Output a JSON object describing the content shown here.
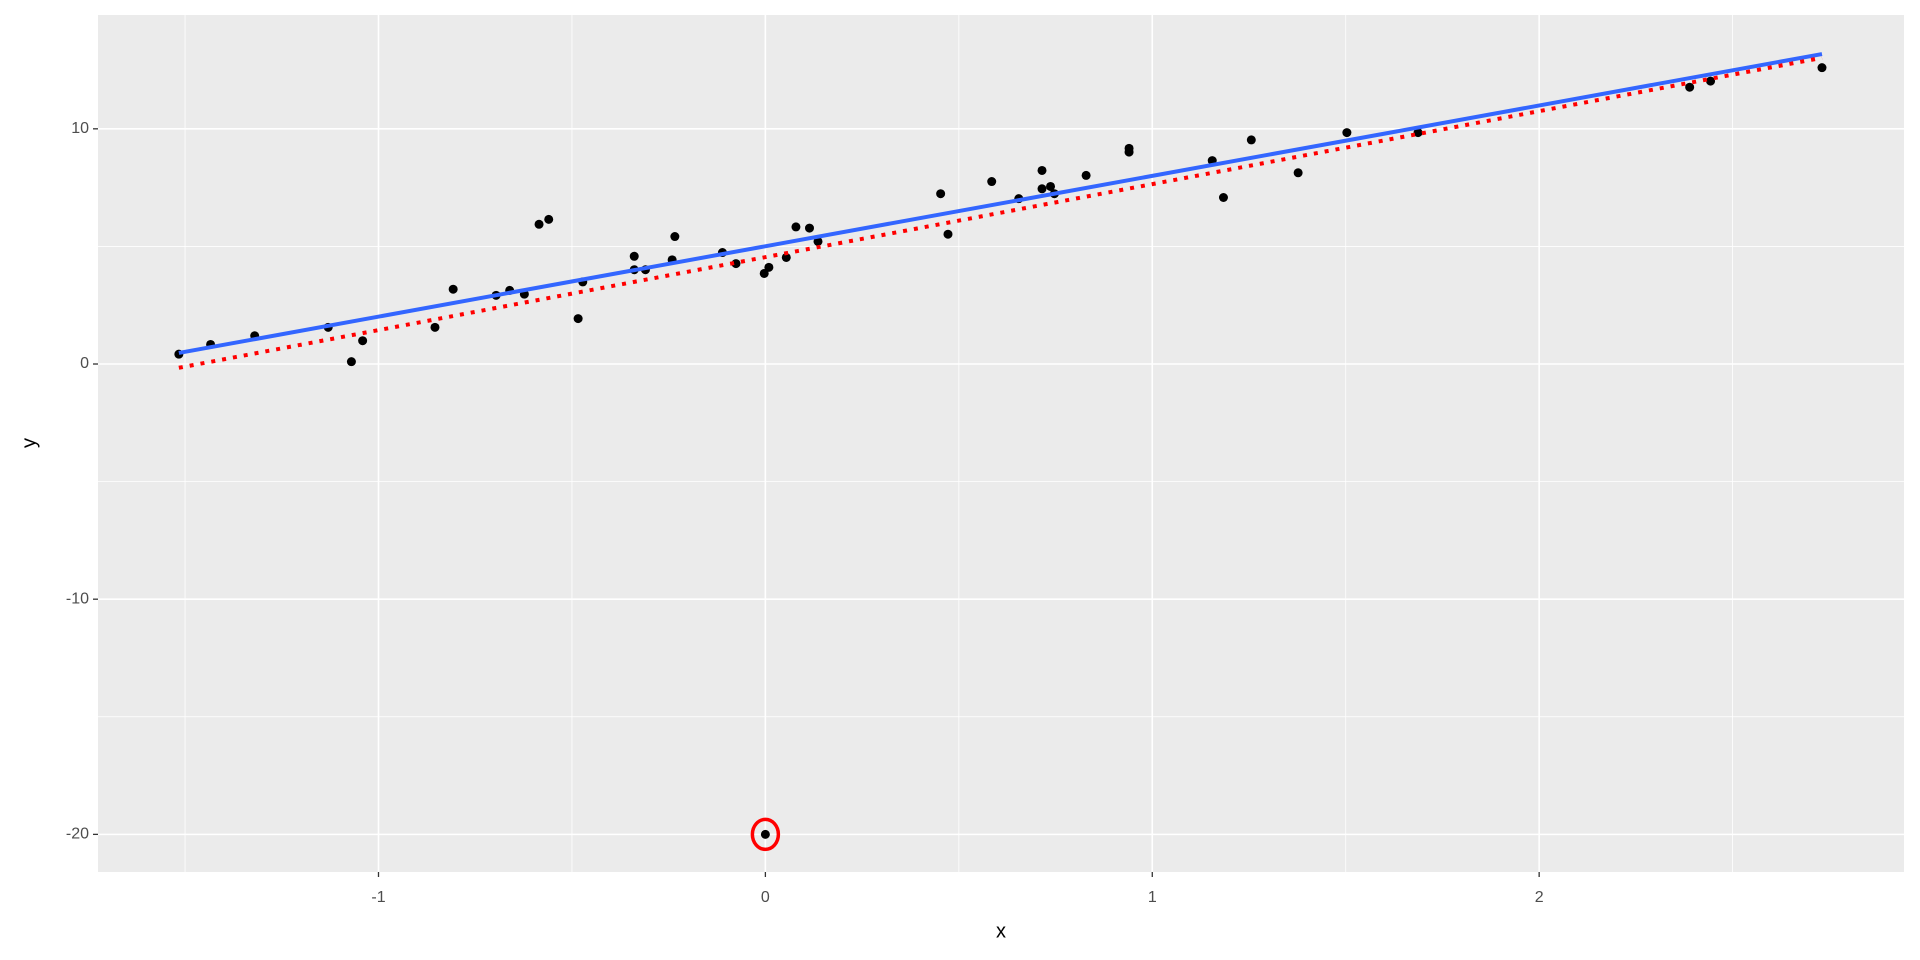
{
  "chart_data": {
    "type": "scatter",
    "x_label": "x",
    "y_label": "y",
    "xlim": [
      -1.725,
      2.943
    ],
    "ylim": [
      -21.6,
      14.84
    ],
    "xticks": [
      -1,
      0,
      1,
      2
    ],
    "yticks": [
      -20,
      -10,
      0,
      10
    ],
    "minor_xticks": [
      -1.5,
      -0.5,
      0.5,
      1.5,
      2.5
    ],
    "minor_yticks": [
      -15,
      -5,
      5
    ],
    "grid": true,
    "point_color": "#000000",
    "x": [
      -1.516,
      -1.434,
      -1.32,
      -1.13,
      -1.07,
      -1.041,
      -0.854,
      -0.807,
      -0.696,
      -0.661,
      -0.623,
      -0.585,
      -0.56,
      -0.484,
      -0.472,
      -0.339,
      -0.339,
      -0.31,
      -0.241,
      -0.234,
      -0.111,
      -0.076,
      -0.003,
      0.009,
      0.054,
      0.079,
      0.114,
      0.136,
      0,
      0.453,
      0.472,
      0.585,
      0.655,
      0.715,
      0.715,
      0.737,
      0.747,
      0.829,
      0.94,
      0.94,
      1.155,
      1.184,
      1.256,
      1.377,
      1.503,
      1.687,
      2.389,
      2.443,
      2.731
    ],
    "values": [
      0.42,
      0.83,
      1.2,
      1.56,
      0.1,
      0.99,
      1.56,
      3.18,
      2.92,
      3.13,
      2.97,
      5.94,
      6.15,
      1.93,
      3.49,
      4.58,
      4.01,
      4.01,
      4.43,
      5.42,
      4.74,
      4.27,
      3.85,
      4.11,
      4.53,
      5.83,
      5.78,
      5.21,
      -20,
      7.24,
      5.52,
      7.76,
      7.03,
      8.23,
      7.45,
      7.55,
      7.24,
      8.02,
      9.17,
      9.01,
      8.65,
      7.08,
      9.53,
      8.13,
      9.84,
      9.84,
      11.77,
      12.03,
      12.6
    ],
    "lines": [
      {
        "color": "#3366ff",
        "style": "solid",
        "x": [
          -1.516,
          2.731
        ],
        "values": [
          0.47,
          13.18
        ]
      },
      {
        "color": "#ff0000",
        "style": "dotted",
        "x": [
          -1.516,
          2.731
        ],
        "values": [
          -0.16,
          13.02
        ]
      }
    ],
    "highlight": {
      "x": 0,
      "y": -20,
      "color": "#ff0000"
    }
  }
}
